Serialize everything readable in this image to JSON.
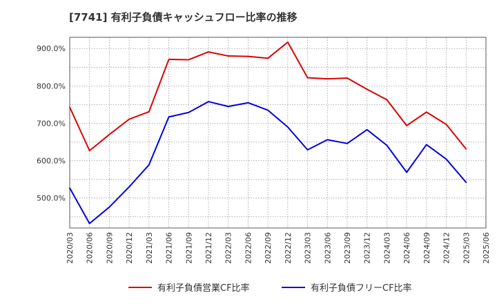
{
  "chart_data": {
    "type": "line",
    "title": "[7741]  有利子負債キャッシュフロー比率の推移",
    "xlabel": "",
    "ylabel": "",
    "x": [
      "2020/03",
      "2020/06",
      "2020/09",
      "2020/12",
      "2021/03",
      "2021/06",
      "2021/09",
      "2021/12",
      "2022/03",
      "2022/06",
      "2022/09",
      "2022/12",
      "2023/03",
      "2023/06",
      "2023/09",
      "2023/12",
      "2024/03",
      "2024/06",
      "2024/09",
      "2024/12",
      "2025/03",
      "2025/06"
    ],
    "y_ticks": [
      "500.0%",
      "600.0%",
      "700.0%",
      "800.0%",
      "900.0%"
    ],
    "ylim": [
      420,
      930
    ],
    "grid": true,
    "legend_position": "bottom",
    "series": [
      {
        "name": "有利子負債営業CF比率",
        "color": "#dd0000",
        "values": [
          743,
          627,
          670,
          711,
          731,
          871,
          870,
          891,
          880,
          879,
          874,
          917,
          822,
          819,
          821,
          791,
          763,
          694,
          730,
          697,
          631,
          null
        ]
      },
      {
        "name": "有利子負債フリーCF比率",
        "color": "#0000dd",
        "values": [
          527,
          432,
          476,
          530,
          589,
          717,
          729,
          758,
          745,
          755,
          735,
          690,
          629,
          656,
          646,
          683,
          641,
          569,
          643,
          604,
          542,
          null
        ]
      }
    ]
  }
}
